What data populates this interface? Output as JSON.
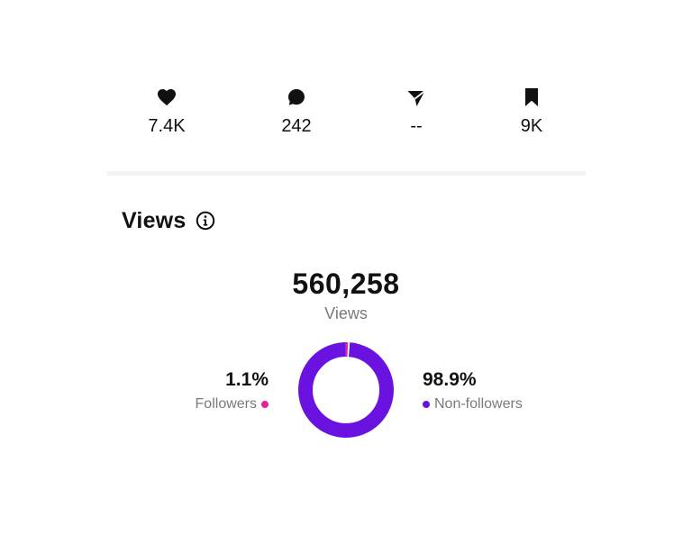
{
  "engagement": {
    "likes": {
      "icon": "heart-icon",
      "value": "7.4K"
    },
    "comments": {
      "icon": "comment-icon",
      "value": "242"
    },
    "shares": {
      "icon": "send-icon",
      "value": "--"
    },
    "saves": {
      "icon": "bookmark-icon",
      "value": "9K"
    }
  },
  "views": {
    "title": "Views",
    "info_icon": "info-icon",
    "total": "560,258",
    "total_label": "Views",
    "followers": {
      "percent": "1.1%",
      "label": "Followers",
      "color": "#e91e9c",
      "share": 1.1
    },
    "non_followers": {
      "percent": "98.9%",
      "label": "Non-followers",
      "color": "#6a13e0",
      "share": 98.9
    }
  },
  "colors": {
    "text": "#111111",
    "muted": "#7a7a7a",
    "divider": "#f2f2f2"
  }
}
